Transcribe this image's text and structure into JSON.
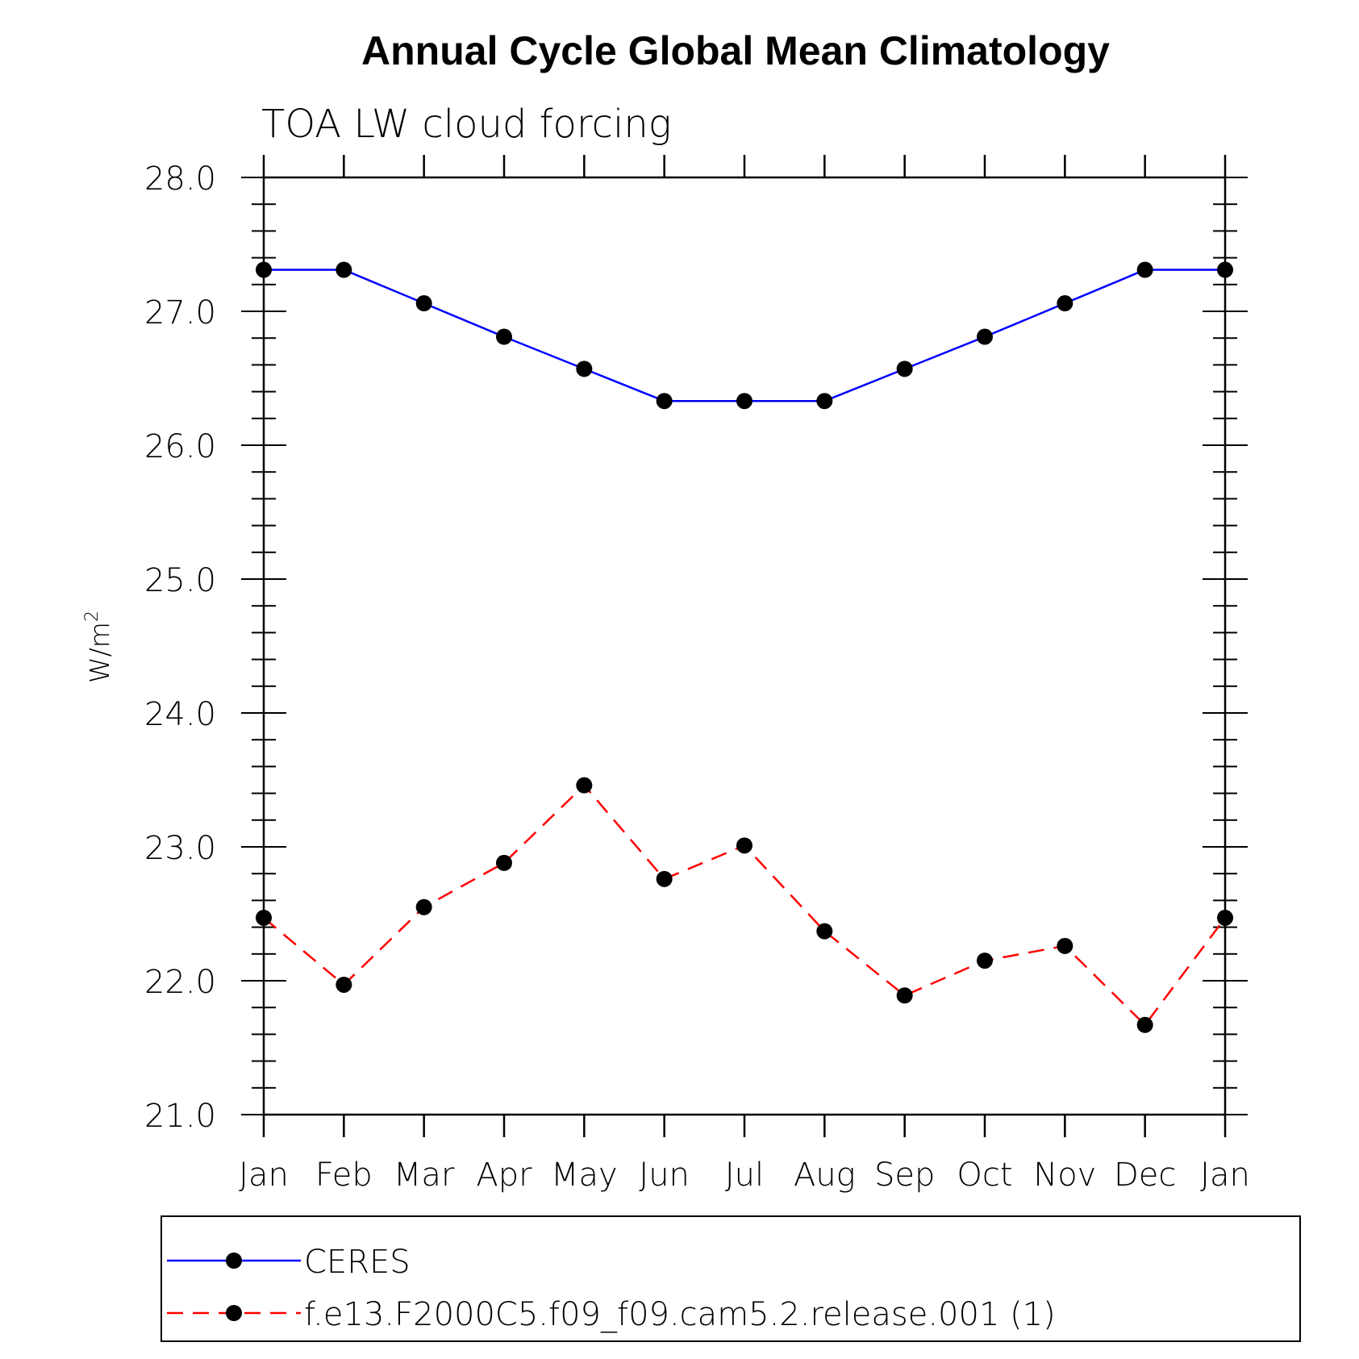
{
  "chart_data": {
    "type": "line",
    "title": "Annual Cycle Global Mean Climatology",
    "subtitle": "TOA LW cloud forcing",
    "ylabel_base": "W/m",
    "ylabel_sup": "2",
    "xlabel": "",
    "categories": [
      "Jan",
      "Feb",
      "Mar",
      "Apr",
      "May",
      "Jun",
      "Jul",
      "Aug",
      "Sep",
      "Oct",
      "Nov",
      "Dec",
      "Jan"
    ],
    "ylim": [
      21.0,
      28.0
    ],
    "yticks": [
      "21.0",
      "22.0",
      "23.0",
      "24.0",
      "25.0",
      "26.0",
      "27.0",
      "28.0"
    ],
    "grid": false,
    "legend_position": "bottom",
    "series": [
      {
        "name": "CERES",
        "color": "#0000ff",
        "line_style": "solid",
        "marker": "filled-circle",
        "values": [
          27.31,
          27.31,
          27.06,
          26.81,
          26.57,
          26.33,
          26.33,
          26.33,
          26.57,
          26.81,
          27.06,
          27.31,
          27.31
        ]
      },
      {
        "name": "f.e13.F2000C5.f09_f09.cam5.2.release.001 (1)",
        "color": "#ff0000",
        "line_style": "dashed",
        "marker": "filled-circle",
        "values": [
          22.47,
          21.97,
          22.55,
          22.88,
          23.46,
          22.76,
          23.01,
          22.37,
          21.89,
          22.15,
          22.26,
          21.67,
          22.47
        ]
      }
    ]
  }
}
